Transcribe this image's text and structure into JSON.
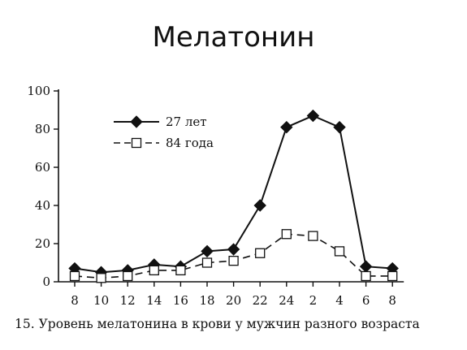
{
  "slide": {
    "title": "Мелатонин",
    "caption": "15. Уровень мелатонина в крови у мужчин разного возраста"
  },
  "chart_data": {
    "type": "line",
    "categories": [
      "8",
      "10",
      "12",
      "14",
      "16",
      "18",
      "20",
      "22",
      "24",
      "2",
      "4",
      "6",
      "8"
    ],
    "yticks": [
      "0",
      "20",
      "40",
      "60",
      "80",
      "100"
    ],
    "ylim": [
      0,
      100
    ],
    "grid": false,
    "legend_position": "top-left",
    "series": [
      {
        "name": "27 лет",
        "marker": "filled-diamond",
        "line_style": "solid",
        "color": "#111111",
        "values": [
          7,
          5,
          6,
          9,
          8,
          16,
          17,
          40,
          81,
          87,
          81,
          8,
          7
        ]
      },
      {
        "name": "84 года",
        "marker": "open-square",
        "line_style": "dashed",
        "color": "#111111",
        "values": [
          3,
          2,
          3,
          6,
          6,
          10,
          11,
          15,
          25,
          24,
          16,
          3,
          3
        ]
      }
    ]
  }
}
